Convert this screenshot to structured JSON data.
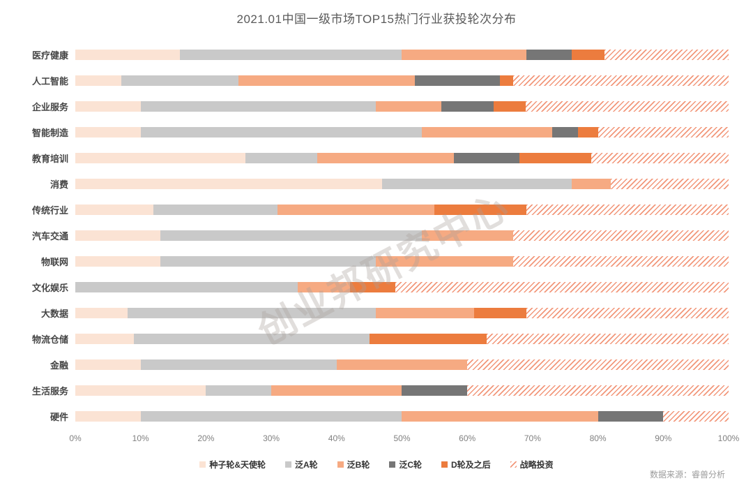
{
  "title": "2021.01中国一级市场TOP15热门行业获投轮次分布",
  "source": "数据来源：睿兽分析",
  "watermark": "创业邦研究中心",
  "colors": {
    "seed": "#fbe3d4",
    "pan_a": "#c9c9c9",
    "pan_b": "#f6aa82",
    "pan_c": "#767676",
    "d_plus": "#ec7c3e",
    "strategic_line": "#f2977a",
    "title_text": "#595959",
    "label_text": "#454545",
    "axis_text": "#808080"
  },
  "chart_data": {
    "type": "bar",
    "orientation": "horizontal",
    "stacked": true,
    "unit": "percent",
    "title": "2021.01中国一级市场TOP15热门行业获投轮次分布",
    "xlabel": "",
    "ylabel": "",
    "xlim": [
      0,
      100
    ],
    "grid": false,
    "legend_position": "bottom",
    "x_ticks": [
      "0%",
      "10%",
      "20%",
      "30%",
      "40%",
      "50%",
      "60%",
      "70%",
      "80%",
      "90%",
      "100%"
    ],
    "categories": [
      "医疗健康",
      "人工智能",
      "企业服务",
      "智能制造",
      "教育培训",
      "消费",
      "传统行业",
      "汽车交通",
      "物联网",
      "文化娱乐",
      "大数据",
      "物流仓储",
      "金融",
      "生活服务",
      "硬件"
    ],
    "series": [
      {
        "key": "seed",
        "name": "种子轮&天使轮",
        "color_key": "seed",
        "values": [
          16,
          7,
          10,
          10,
          26,
          47,
          12,
          13,
          13,
          0,
          8,
          9,
          10,
          20,
          10
        ]
      },
      {
        "key": "pan-a",
        "name": "泛A轮",
        "color_key": "pan_a",
        "values": [
          34,
          18,
          36,
          43,
          11,
          29,
          19,
          40,
          33,
          34,
          38,
          36,
          30,
          10,
          40
        ]
      },
      {
        "key": "pan-b",
        "name": "泛B轮",
        "color_key": "pan_b",
        "values": [
          19,
          27,
          10,
          20,
          21,
          6,
          24,
          14,
          21,
          8,
          15,
          0,
          20,
          20,
          30
        ]
      },
      {
        "key": "pan-c",
        "name": "泛C轮",
        "color_key": "pan_c",
        "values": [
          7,
          13,
          8,
          4,
          10,
          0,
          0,
          0,
          0,
          0,
          0,
          0,
          0,
          10,
          10
        ]
      },
      {
        "key": "d-plus",
        "name": "D轮及之后",
        "color_key": "d_plus",
        "values": [
          5,
          2,
          5,
          3,
          11,
          0,
          14,
          0,
          0,
          7,
          8,
          18,
          0,
          0,
          0
        ]
      },
      {
        "key": "strategic",
        "name": "战略投资",
        "pattern": "hatch",
        "values": [
          19,
          33,
          31,
          20,
          21,
          18,
          31,
          33,
          33,
          51,
          31,
          37,
          40,
          40,
          10
        ]
      }
    ]
  }
}
